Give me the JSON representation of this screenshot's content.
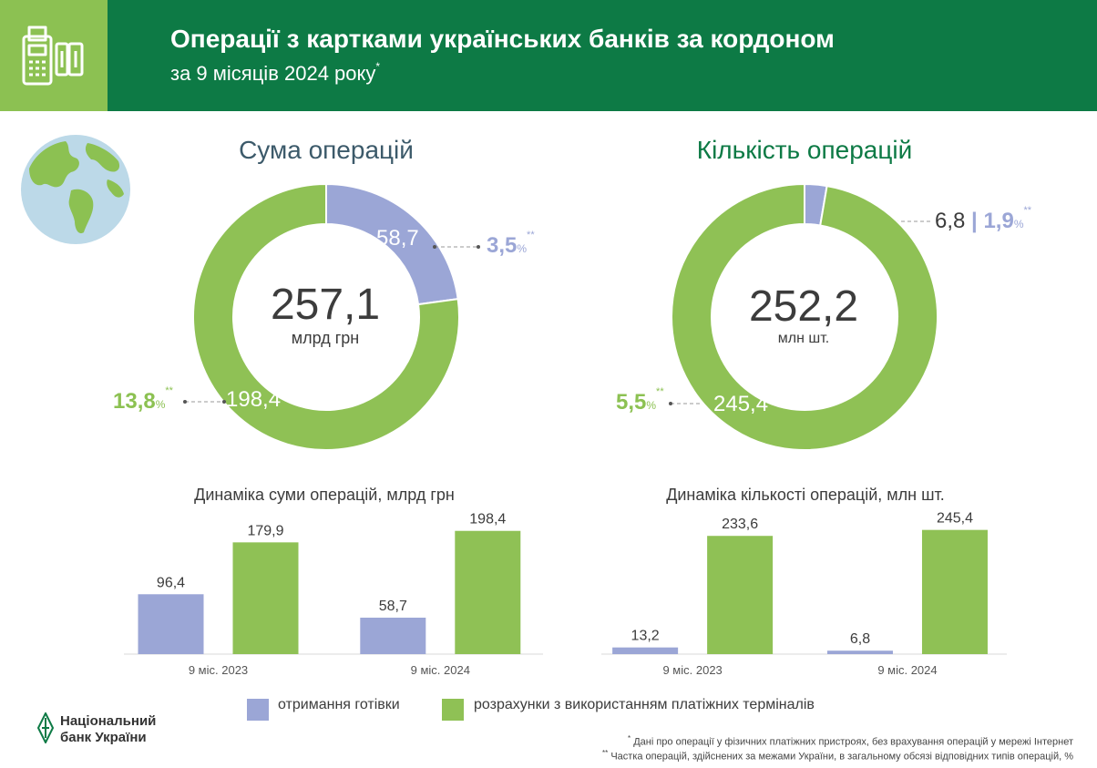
{
  "header": {
    "title": "Операції з картками українських банків за кордоном",
    "subtitle": "за 9 місяців 2024 року",
    "subtitle_mark": "*"
  },
  "colors": {
    "header_green": "#0d7a45",
    "light_green": "#8cc152",
    "cash_blue": "#9ba6d6",
    "terminal_green": "#8fc155"
  },
  "sum_section": {
    "title": "Сума операцій",
    "total": "257,1",
    "unit": "млрд грн",
    "cash_value": "58,7",
    "terminal_value": "198,4",
    "cash_share": "3,5",
    "terminal_share": "13,8",
    "share_unit": "%",
    "share_mark": "**"
  },
  "count_section": {
    "title": "Кількість операцій",
    "total": "252,2",
    "unit": "млн шт.",
    "cash_value": "6,8",
    "separator": "|",
    "terminal_value": "245,4",
    "cash_share": "1,9",
    "terminal_share": "5,5",
    "share_unit": "%",
    "share_mark": "**"
  },
  "chart_data": [
    {
      "type": "pie",
      "title": "Сума операцій",
      "center_value": "257,1",
      "center_unit": "млрд грн",
      "categories": [
        "отримання готівки",
        "розрахунки з використанням платіжних терміналів"
      ],
      "values": [
        58.7,
        198.4
      ]
    },
    {
      "type": "pie",
      "title": "Кількість операцій",
      "center_value": "252,2",
      "center_unit": "млн шт.",
      "categories": [
        "отримання готівки",
        "розрахунки з використанням платіжних терміналів"
      ],
      "values": [
        6.8,
        245.4
      ]
    },
    {
      "type": "bar",
      "title": "Динаміка суми операцій, млрд грн",
      "categories": [
        "9 міс. 2023",
        "9 міс. 2024"
      ],
      "series": [
        {
          "name": "отримання готівки",
          "values": [
            96.4,
            58.7
          ],
          "labels": [
            "96,4",
            "58,7"
          ]
        },
        {
          "name": "розрахунки з використанням платіжних терміналів",
          "values": [
            179.9,
            198.4
          ],
          "labels": [
            "179,9",
            "198,4"
          ]
        }
      ],
      "ylim": [
        0,
        220
      ],
      "grid": false
    },
    {
      "type": "bar",
      "title": "Динаміка кількості операцій, млн шт.",
      "categories": [
        "9 міс. 2023",
        "9 міс. 2024"
      ],
      "series": [
        {
          "name": "отримання готівки",
          "values": [
            13.2,
            6.8
          ],
          "labels": [
            "13,2",
            "6,8"
          ]
        },
        {
          "name": "розрахунки з використанням платіжних терміналів",
          "values": [
            233.6,
            245.4
          ],
          "labels": [
            "233,6",
            "245,4"
          ]
        }
      ],
      "ylim": [
        0,
        270
      ],
      "grid": false
    }
  ],
  "legend": {
    "cash": "отримання готівки",
    "terminals": "розрахунки з використанням платіжних терміналів"
  },
  "logo": {
    "line1": "Національний",
    "line2": "банк України"
  },
  "footnotes": {
    "note1_mark": "*",
    "note1": "Дані про операції у фізичних платіжних пристроях, без врахування операцій у мережі Інтернет",
    "note2_mark": "**",
    "note2": "Частка операцій, здійснених за межами України, в загальному обсязі відповідних типів операцій, %"
  },
  "icons": {
    "header": "pos-terminal-icon",
    "globe": "globe-icon",
    "logo": "nbu-logo-icon"
  }
}
